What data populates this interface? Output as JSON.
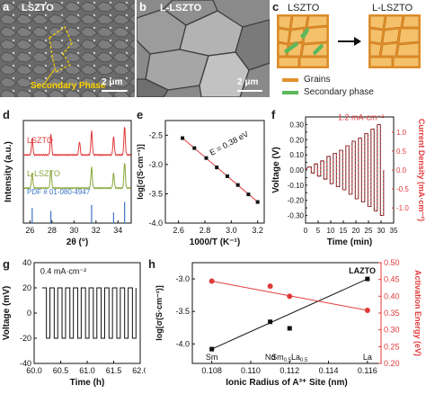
{
  "panels": {
    "a": {
      "letter": "a",
      "sample": "LSZTO",
      "annotation": "Secondary Phase",
      "scale": "2 μm"
    },
    "b": {
      "letter": "b",
      "sample": "L-LSZTO",
      "scale": "2 μm"
    },
    "c": {
      "letter": "c",
      "left_title": "LSZTO",
      "right_title": "L-LSZTO",
      "legend": [
        {
          "label": "Grains",
          "color": "#f0a040"
        },
        {
          "label": "Secondary phase",
          "color": "#5cb85c"
        }
      ]
    },
    "d": {
      "letter": "d"
    },
    "e": {
      "letter": "e"
    },
    "f": {
      "letter": "f"
    },
    "g": {
      "letter": "g"
    },
    "h": {
      "letter": "h"
    }
  },
  "chart_data": [
    {
      "id": "d",
      "type": "line",
      "xlabel": "2θ (°)",
      "ylabel": "Intensity (a.u.)",
      "xlim": [
        25.4,
        35.2
      ],
      "xticks": [
        26,
        28,
        30,
        32,
        34
      ],
      "series": [
        {
          "name": "LSZTO",
          "color": "#e03a3a",
          "offset": 2.2,
          "peaks": [
            [
              26.2,
              0.55
            ],
            [
              27.9,
              0.7
            ],
            [
              30.5,
              0.45
            ],
            [
              31.6,
              0.8
            ],
            [
              33.6,
              0.6
            ],
            [
              34.6,
              0.95
            ]
          ]
        },
        {
          "name": "L-LSZTO",
          "color": "#8aa63a",
          "offset": 1.1,
          "peaks": [
            [
              26.2,
              0.5
            ],
            [
              27.9,
              0.6
            ],
            [
              31.6,
              0.7
            ],
            [
              33.6,
              0.5
            ],
            [
              34.6,
              0.85
            ]
          ]
        }
      ],
      "reference": {
        "name": "PDF # 01-080-4947",
        "color": "#3b73c4",
        "lines": [
          [
            26.2,
            0.5
          ],
          [
            27.9,
            0.4
          ],
          [
            31.6,
            0.6
          ],
          [
            33.6,
            0.35
          ],
          [
            34.6,
            0.7
          ]
        ]
      }
    },
    {
      "id": "e",
      "type": "scatter",
      "xlabel": "1000/T (K⁻¹)",
      "ylabel": "log[σ(S·cm⁻¹)]",
      "xlim": [
        2.5,
        3.25
      ],
      "ylim": [
        -4.0,
        -2.25
      ],
      "xticks": [
        2.6,
        2.8,
        3.0,
        3.2
      ],
      "yticks": [
        -4.0,
        -3.5,
        -3.0,
        -2.5
      ],
      "annotation": "E = 0.38 eV",
      "x": [
        2.63,
        2.72,
        2.81,
        2.89,
        2.97,
        3.05,
        3.13,
        3.2
      ],
      "y": [
        -2.55,
        -2.72,
        -2.89,
        -3.05,
        -3.2,
        -3.35,
        -3.51,
        -3.64
      ]
    },
    {
      "id": "f",
      "type": "line",
      "xlabel": "Time (min)",
      "ylabel": "Voltage (V)",
      "y2label": "Current Density (mA·cm⁻²)",
      "xlim": [
        0,
        35
      ],
      "ylim": [
        -0.35,
        0.35
      ],
      "y2lim": [
        -1.4,
        1.4
      ],
      "xticks": [
        0,
        5,
        10,
        15,
        20,
        25,
        30,
        35
      ],
      "yticks": [
        -0.3,
        -0.25,
        -0.2,
        -0.15,
        -0.1,
        -0.05,
        0.0,
        0.05,
        0.1,
        0.15,
        0.2,
        0.25,
        0.3
      ],
      "y2ticks": [
        -1.0,
        -0.5,
        0.0,
        0.5,
        1.0
      ],
      "annotation": "1.2 mA·cm⁻²",
      "cycle_amplitudes_V": [
        0.02,
        0.04,
        0.06,
        0.09,
        0.11,
        0.13,
        0.16,
        0.19,
        0.21,
        0.24,
        0.27,
        0.3
      ]
    },
    {
      "id": "g",
      "type": "line",
      "xlabel": "Time (h)",
      "ylabel": "Voltage (mV)",
      "xlim": [
        60.0,
        62.0
      ],
      "ylim": [
        -40,
        40
      ],
      "xticks": [
        60.0,
        60.5,
        61.0,
        61.5,
        62.0
      ],
      "xticklabels": [
        "60.0",
        "60.5",
        "61.0",
        "61.5",
        "62.0"
      ],
      "yticks": [
        -40,
        -20,
        0,
        20,
        40
      ],
      "annotation": "0.4 mA·cm⁻²",
      "cycles": 12,
      "amplitude_mV": 20
    },
    {
      "id": "h",
      "type": "scatter",
      "xlabel": "Ionic Radius of A³⁺ Site (nm)",
      "ylabel": "log[σ(S·cm⁻¹)]",
      "y2label": "Activation Energy (eV)",
      "xlim": [
        0.107,
        0.1167
      ],
      "ylim": [
        -4.3,
        -2.75
      ],
      "y2lim": [
        0.2,
        0.5
      ],
      "xticks": [
        0.108,
        0.11,
        0.112,
        0.114,
        0.116
      ],
      "yticks": [
        -4.0,
        -3.5,
        -3.0
      ],
      "y2ticks": [
        0.2,
        0.25,
        0.3,
        0.35,
        0.4,
        0.45,
        0.5
      ],
      "title": "LAZTO",
      "element_labels": [
        {
          "x": 0.108,
          "main": "Sm",
          "sub1": "",
          "mid": "",
          "sub2": ""
        },
        {
          "x": 0.111,
          "main": "Nd",
          "sub1": "",
          "mid": "",
          "sub2": ""
        },
        {
          "x": 0.112,
          "main": "Sm",
          "sub1": "0.5",
          "mid": "La",
          "sub2": "0.5"
        },
        {
          "x": 0.116,
          "main": "La",
          "sub1": "",
          "mid": "",
          "sub2": ""
        }
      ],
      "series": [
        {
          "name": "log σ",
          "color": "#111111",
          "x": [
            0.108,
            0.111,
            0.112,
            0.116
          ],
          "y": [
            -4.08,
            -3.66,
            -3.76,
            -3.0
          ]
        },
        {
          "name": "Ea",
          "color": "#e03a3a",
          "axis": "right",
          "x": [
            0.108,
            0.111,
            0.112,
            0.116
          ],
          "y": [
            0.445,
            0.43,
            0.4,
            0.358
          ]
        }
      ]
    }
  ]
}
